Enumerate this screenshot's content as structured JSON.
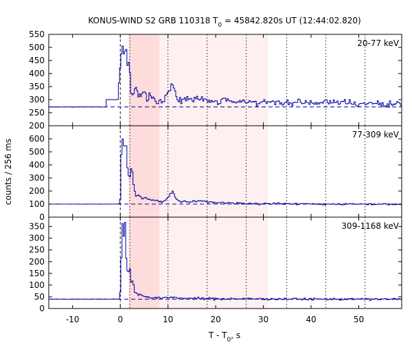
{
  "chart_data": {
    "type": "line",
    "title": {
      "prefix": "KONUS-WIND S2 GRB 110318 T",
      "sub": "0",
      "suffix": " = 45842.820s UT (12:44:02.820)"
    },
    "xlabel": {
      "prefix": "T - T",
      "sub": "0",
      "suffix": ", s"
    },
    "ylabel": "counts / 256 ms",
    "xlim": [
      -15,
      59
    ],
    "x_ticks": [
      -10,
      0,
      10,
      20,
      30,
      40,
      50
    ],
    "x_tick_labels": [
      "-10",
      "0",
      "10",
      "20",
      "30",
      "40",
      "50"
    ],
    "bin_width_s": 0.256,
    "trigger_time_s": 0,
    "shaded_intervals": [
      {
        "range": [
          1.8,
          8.2
        ],
        "color": "#ffdcdc"
      },
      {
        "range": [
          8.2,
          31.0
        ],
        "color": "#fff0f0"
      }
    ],
    "vertical_dotted_lines": [
      2.0,
      10.0,
      18.2,
      26.4,
      34.9,
      43.1,
      51.3
    ],
    "line_color": "#0000a0",
    "panels": [
      {
        "band": "20-77 keV",
        "ylim": [
          200,
          550
        ],
        "y_ticks": [
          200,
          250,
          300,
          350,
          400,
          450,
          500,
          550
        ],
        "y_tick_labels": [
          "200",
          "250",
          "300",
          "350",
          "400",
          "450",
          "500",
          "550"
        ],
        "background_level": 272,
        "profile": [
          [
            -15,
            272
          ],
          [
            -3,
            272
          ],
          [
            -2.9,
            300
          ],
          [
            -0.5,
            300
          ],
          [
            -0.3,
            360
          ],
          [
            0.1,
            450
          ],
          [
            0.4,
            515
          ],
          [
            0.8,
            470
          ],
          [
            1.2,
            500
          ],
          [
            1.5,
            420
          ],
          [
            1.9,
            440
          ],
          [
            2.2,
            330
          ],
          [
            2.6,
            310
          ],
          [
            3.0,
            345
          ],
          [
            3.6,
            330
          ],
          [
            4.3,
            305
          ],
          [
            5.0,
            345
          ],
          [
            5.6,
            300
          ],
          [
            6.2,
            318
          ],
          [
            7.0,
            300
          ],
          [
            8.0,
            288
          ],
          [
            9.0,
            298
          ],
          [
            10.0,
            328
          ],
          [
            11.0,
            350
          ],
          [
            12.0,
            305
          ],
          [
            13.0,
            298
          ],
          [
            14.0,
            300
          ],
          [
            15.0,
            306
          ],
          [
            17.0,
            300
          ],
          [
            19.0,
            292
          ],
          [
            21.0,
            298
          ],
          [
            23.0,
            292
          ],
          [
            26.0,
            295
          ],
          [
            30.0,
            290
          ],
          [
            35.0,
            286
          ],
          [
            40.0,
            288
          ],
          [
            45.0,
            290
          ],
          [
            50.0,
            286
          ],
          [
            55.0,
            283
          ],
          [
            59.0,
            280
          ]
        ]
      },
      {
        "band": "77-309 keV",
        "ylim": [
          0,
          700
        ],
        "y_ticks": [
          0,
          100,
          200,
          300,
          400,
          500,
          600
        ],
        "y_tick_labels": [
          "0",
          "100",
          "200",
          "300",
          "400",
          "500",
          "600"
        ],
        "background_level": 100,
        "profile": [
          [
            -15,
            100
          ],
          [
            -0.3,
            100
          ],
          [
            0.0,
            140
          ],
          [
            0.2,
            450
          ],
          [
            0.4,
            600
          ],
          [
            0.8,
            520
          ],
          [
            1.2,
            580
          ],
          [
            1.6,
            320
          ],
          [
            2.0,
            300
          ],
          [
            2.4,
            410
          ],
          [
            2.8,
            250
          ],
          [
            3.2,
            160
          ],
          [
            3.8,
            180
          ],
          [
            4.5,
            140
          ],
          [
            5.5,
            150
          ],
          [
            6.5,
            130
          ],
          [
            7.5,
            125
          ],
          [
            9.0,
            118
          ],
          [
            10.0,
            150
          ],
          [
            11.0,
            200
          ],
          [
            11.8,
            130
          ],
          [
            13.0,
            120
          ],
          [
            15.0,
            115
          ],
          [
            17.0,
            130
          ],
          [
            19.0,
            112
          ],
          [
            22.0,
            108
          ],
          [
            26.0,
            105
          ],
          [
            30.0,
            104
          ],
          [
            35.0,
            102
          ],
          [
            45.0,
            100
          ],
          [
            59.0,
            100
          ]
        ]
      },
      {
        "band": "309-1168 keV",
        "ylim": [
          0,
          390
        ],
        "y_ticks": [
          0,
          50,
          100,
          150,
          200,
          250,
          300,
          350
        ],
        "y_tick_labels": [
          "0",
          "50",
          "100",
          "150",
          "200",
          "250",
          "300",
          "350"
        ],
        "background_level": 40,
        "profile": [
          [
            -15,
            40
          ],
          [
            -0.2,
            40
          ],
          [
            0.1,
            90
          ],
          [
            0.3,
            280
          ],
          [
            0.5,
            360
          ],
          [
            0.8,
            300
          ],
          [
            1.0,
            370
          ],
          [
            1.3,
            200
          ],
          [
            1.6,
            140
          ],
          [
            2.0,
            180
          ],
          [
            2.3,
            110
          ],
          [
            2.7,
            120
          ],
          [
            3.0,
            70
          ],
          [
            4.0,
            60
          ],
          [
            5.0,
            52
          ],
          [
            7.0,
            46
          ],
          [
            9.0,
            44
          ],
          [
            11.0,
            48
          ],
          [
            13.0,
            44
          ],
          [
            16.0,
            43
          ],
          [
            20.0,
            42
          ],
          [
            30.0,
            41
          ],
          [
            40.0,
            40
          ],
          [
            50.0,
            40
          ],
          [
            59.0,
            40
          ]
        ]
      }
    ]
  }
}
